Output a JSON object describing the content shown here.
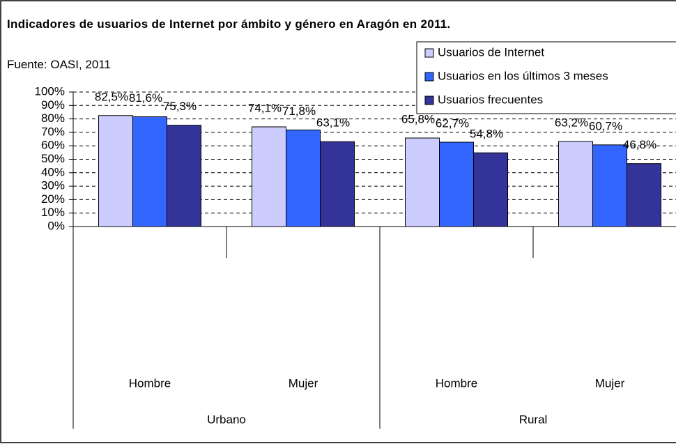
{
  "chart_data": {
    "type": "bar",
    "title": "Indicadores de usuarios de Internet por ámbito y género en Aragón en 2011.",
    "subtitle": "Fuente: OASI, 2011",
    "groups": [
      {
        "name": "Urbano",
        "categories": [
          "Hombre",
          "Mujer"
        ]
      },
      {
        "name": "Rural",
        "categories": [
          "Hombre",
          "Mujer"
        ]
      }
    ],
    "series": [
      {
        "name": "Usuarios de Internet",
        "color": "#ccccff",
        "values": [
          82.5,
          74.1,
          65.8,
          63.2
        ],
        "value_labels": [
          "82,5%",
          "74,1%",
          "65,8%",
          "63,2%"
        ]
      },
      {
        "name": "Usuarios en los últimos 3 meses",
        "color": "#3366ff",
        "values": [
          81.6,
          71.8,
          62.7,
          60.7
        ],
        "value_labels": [
          "81,6%",
          "71,8%",
          "62,7%",
          "60,7%"
        ]
      },
      {
        "name": "Usuarios frecuentes",
        "color": "#333399",
        "values": [
          75.3,
          63.1,
          54.8,
          46.8
        ],
        "value_labels": [
          "75,3%",
          "63,1%",
          "54,8%",
          "46,8%"
        ]
      }
    ],
    "ylim": [
      0,
      100
    ],
    "yticks": [
      {
        "value": 0,
        "label": "0%"
      },
      {
        "value": 10,
        "label": "10%"
      },
      {
        "value": 20,
        "label": "20%"
      },
      {
        "value": 30,
        "label": "30%"
      },
      {
        "value": 40,
        "label": "40%"
      },
      {
        "value": 50,
        "label": "50%"
      },
      {
        "value": 60,
        "label": "60%"
      },
      {
        "value": 70,
        "label": "70%"
      },
      {
        "value": 80,
        "label": "80%"
      },
      {
        "value": 90,
        "label": "90%"
      },
      {
        "value": 100,
        "label": "100%"
      }
    ],
    "grid": true,
    "legend": "top-right"
  }
}
